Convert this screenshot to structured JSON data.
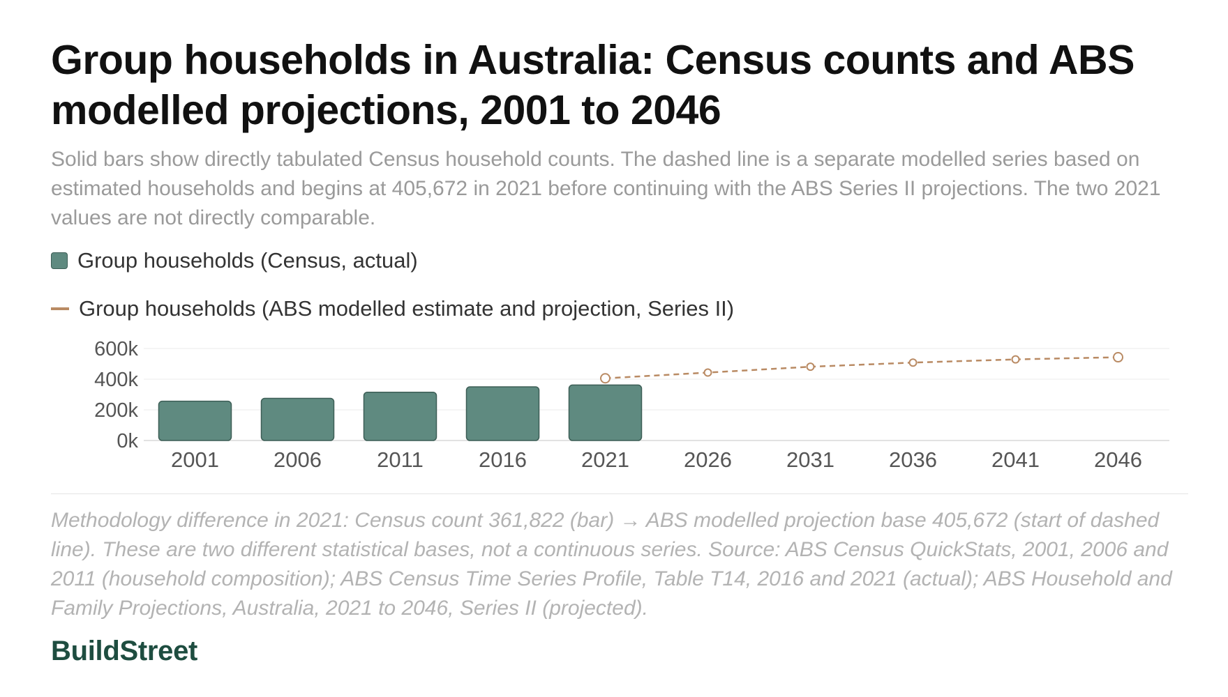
{
  "title": "Group households in Australia: Census counts and ABS modelled projections, 2001 to 2046",
  "subtitle": "Solid bars show directly tabulated Census household counts. The dashed line is a separate modelled series based on estimated households and begins at 405,672 in 2021 before continuing with the ABS Series II projections. The two 2021 values are not directly comparable.",
  "footnote": "Methodology difference in 2021: Census count 361,822 (bar) → ABS modelled projection base 405,672 (start of dashed line). These are two different statistical bases, not a continuous series. Source: ABS Census QuickStats, 2001, 2006 and 2011 (household composition); ABS Census Time Series Profile, Table T14, 2016 and 2021 (actual); ABS Household and Family Projections, Australia, 2021 to 2046, Series II (projected).",
  "brand": "BuildStreet",
  "colors": {
    "bar_fill": "#5f8a80",
    "bar_stroke": "#3d5e56",
    "line": "#b98a63",
    "grid": "#ebebeb"
  },
  "chart_data": {
    "type": "bar",
    "categories": [
      "2001",
      "2006",
      "2011",
      "2016",
      "2021",
      "2026",
      "2031",
      "2036",
      "2041",
      "2046"
    ],
    "ylabel": "Group households",
    "ylim": [
      0,
      600000
    ],
    "yticks": [
      0,
      200000,
      400000,
      600000
    ],
    "ytick_labels": [
      "0k",
      "200k",
      "400k",
      "600k"
    ],
    "grid": true,
    "legend_placement": "top-left",
    "series": [
      {
        "name": "Group households (Census, actual)",
        "type": "bar",
        "x": [
          "2001",
          "2006",
          "2011",
          "2016",
          "2021"
        ],
        "values": [
          256000,
          275000,
          315000,
          350000,
          361822
        ]
      },
      {
        "name": "Group households (ABS modelled estimate and projection, Series II)",
        "type": "line",
        "style": "dashed",
        "x": [
          "2021",
          "2026",
          "2031",
          "2036",
          "2041",
          "2046"
        ],
        "values": [
          405672,
          443000,
          481000,
          508000,
          529000,
          543000
        ]
      }
    ]
  }
}
